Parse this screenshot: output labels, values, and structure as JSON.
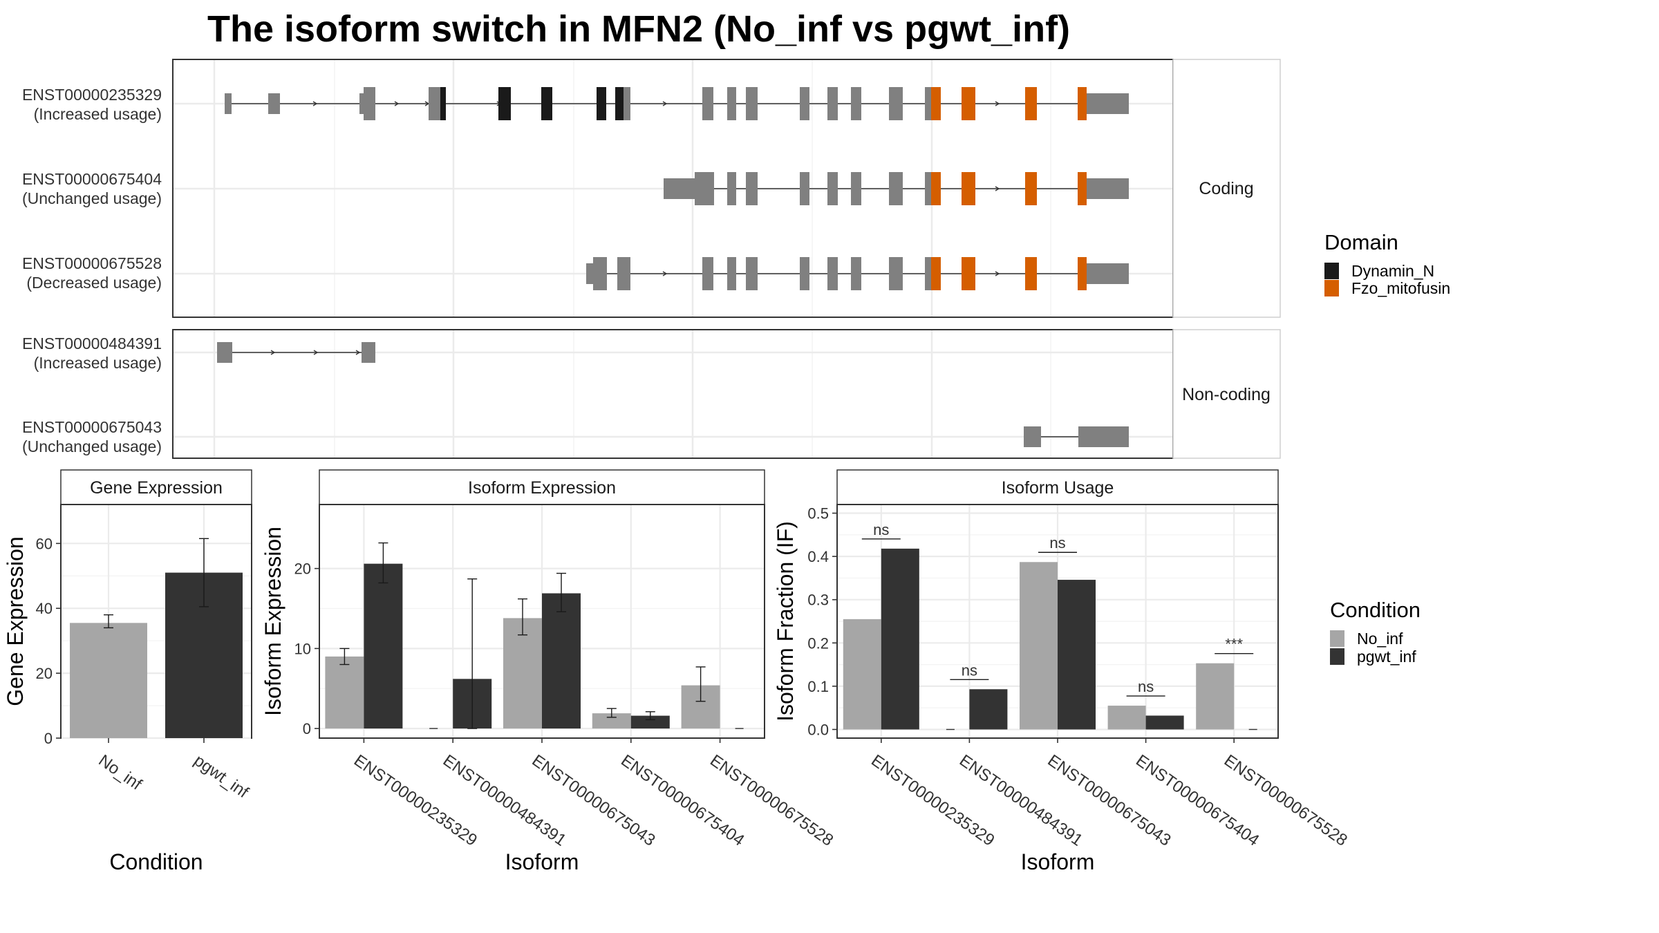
{
  "title": "The isoform switch in MFN2 (No_inf vs pgwt_inf)",
  "colors": {
    "Dynamin_N": "#1a1a1a",
    "Fzo_mitofusin": "#d55e00",
    "exon": "#808080",
    "No_inf": "#a6a6a6",
    "pgwt_inf": "#333333"
  },
  "structure": {
    "coding_label": "Coding",
    "noncoding_label": "Non-coding",
    "coding": [
      {
        "id": "ENST00000235329",
        "usage": "(Increased usage)"
      },
      {
        "id": "ENST00000675404",
        "usage": "(Unchanged usage)"
      },
      {
        "id": "ENST00000675528",
        "usage": "(Decreased usage)"
      }
    ],
    "noncoding": [
      {
        "id": "ENST00000484391",
        "usage": "(Increased usage)"
      },
      {
        "id": "ENST00000675043",
        "usage": "(Unchanged usage)"
      }
    ]
  },
  "legend_domain": {
    "title": "Domain",
    "items": [
      "Dynamin_N",
      "Fzo_mitofusin"
    ]
  },
  "legend_condition": {
    "title": "Condition",
    "items": [
      "No_inf",
      "pgwt_inf"
    ]
  },
  "chart_data": [
    {
      "type": "bar",
      "panel": "Gene Expression",
      "xlabel": "Condition",
      "ylabel": "Gene Expression",
      "categories": [
        "No_inf",
        "pgwt_inf"
      ],
      "values": [
        35.5,
        51.0
      ],
      "error_low": [
        34.0,
        40.5
      ],
      "error_high": [
        38.0,
        61.5
      ],
      "ylim": [
        0,
        72
      ],
      "yticks": [
        0,
        20,
        40,
        60
      ]
    },
    {
      "type": "bar",
      "panel": "Isoform Expression",
      "xlabel": "Isoform",
      "ylabel": "Isoform Expression",
      "categories": [
        "ENST00000235329",
        "ENST00000484391",
        "ENST00000675043",
        "ENST00000675404",
        "ENST00000675528"
      ],
      "series": [
        {
          "name": "No_inf",
          "values": [
            9.0,
            0.0,
            13.8,
            1.9,
            5.4
          ],
          "error_low": [
            8.0,
            0.0,
            11.7,
            1.4,
            3.4
          ],
          "error_high": [
            10.0,
            0.0,
            16.2,
            2.5,
            7.7
          ]
        },
        {
          "name": "pgwt_inf",
          "values": [
            20.6,
            6.2,
            16.9,
            1.6,
            0.0
          ],
          "error_low": [
            18.2,
            0.0,
            14.6,
            1.1,
            0.0
          ],
          "error_high": [
            23.2,
            18.7,
            19.4,
            2.1,
            0.0
          ]
        }
      ],
      "ylim": [
        -1.2,
        28
      ],
      "yticks": [
        0,
        10,
        20
      ]
    },
    {
      "type": "bar",
      "panel": "Isoform Usage",
      "xlabel": "Isoform",
      "ylabel": "Isoform Fraction (IF)",
      "categories": [
        "ENST00000235329",
        "ENST00000484391",
        "ENST00000675043",
        "ENST00000675404",
        "ENST00000675528"
      ],
      "series": [
        {
          "name": "No_inf",
          "values": [
            0.255,
            0.0,
            0.387,
            0.055,
            0.153
          ]
        },
        {
          "name": "pgwt_inf",
          "values": [
            0.418,
            0.093,
            0.346,
            0.032,
            0.0
          ]
        }
      ],
      "significance": [
        "ns",
        "ns",
        "ns",
        "ns",
        "***"
      ],
      "ylim": [
        -0.02,
        0.52
      ],
      "yticks": [
        0.0,
        0.1,
        0.2,
        0.3,
        0.4,
        0.5
      ],
      "ytick_labels": [
        "0.0",
        "0.1",
        "0.2",
        "0.3",
        "0.4",
        "0.5"
      ]
    }
  ]
}
